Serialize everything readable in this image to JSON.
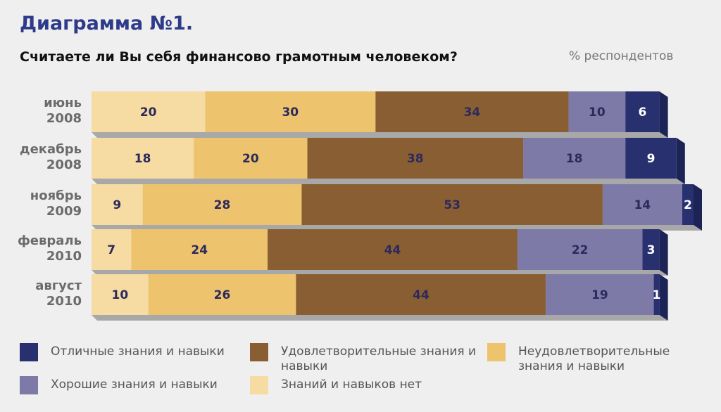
{
  "chart_data": {
    "type": "stacked-bar-horizontal",
    "title": "Диаграмма №1.",
    "subtitle": "Считаете ли Вы себя финансово грамотным человеком?",
    "unit_label": "% респондентов",
    "categories": [
      "июнь 2008",
      "декабрь 2008",
      "ноябрь 2009",
      "февраль 2010",
      "август 2010"
    ],
    "series": [
      {
        "name": "Знаний и навыков нет",
        "color": "#f6dca2",
        "values": [
          20,
          18,
          9,
          7,
          10
        ]
      },
      {
        "name": "Неудовлетворительные знания и навыки",
        "color": "#eec36d",
        "values": [
          30,
          20,
          28,
          24,
          26
        ]
      },
      {
        "name": "Удовлетворительные знания и навыки",
        "color": "#8a5e33",
        "values": [
          34,
          38,
          53,
          44,
          44
        ]
      },
      {
        "name": "Хорошие знания и навыки",
        "color": "#7e7aa7",
        "values": [
          10,
          18,
          14,
          22,
          19
        ]
      },
      {
        "name": "Отличные знания и навыки",
        "color": "#28306f",
        "values": [
          6,
          9,
          2,
          3,
          1
        ]
      }
    ]
  }
}
